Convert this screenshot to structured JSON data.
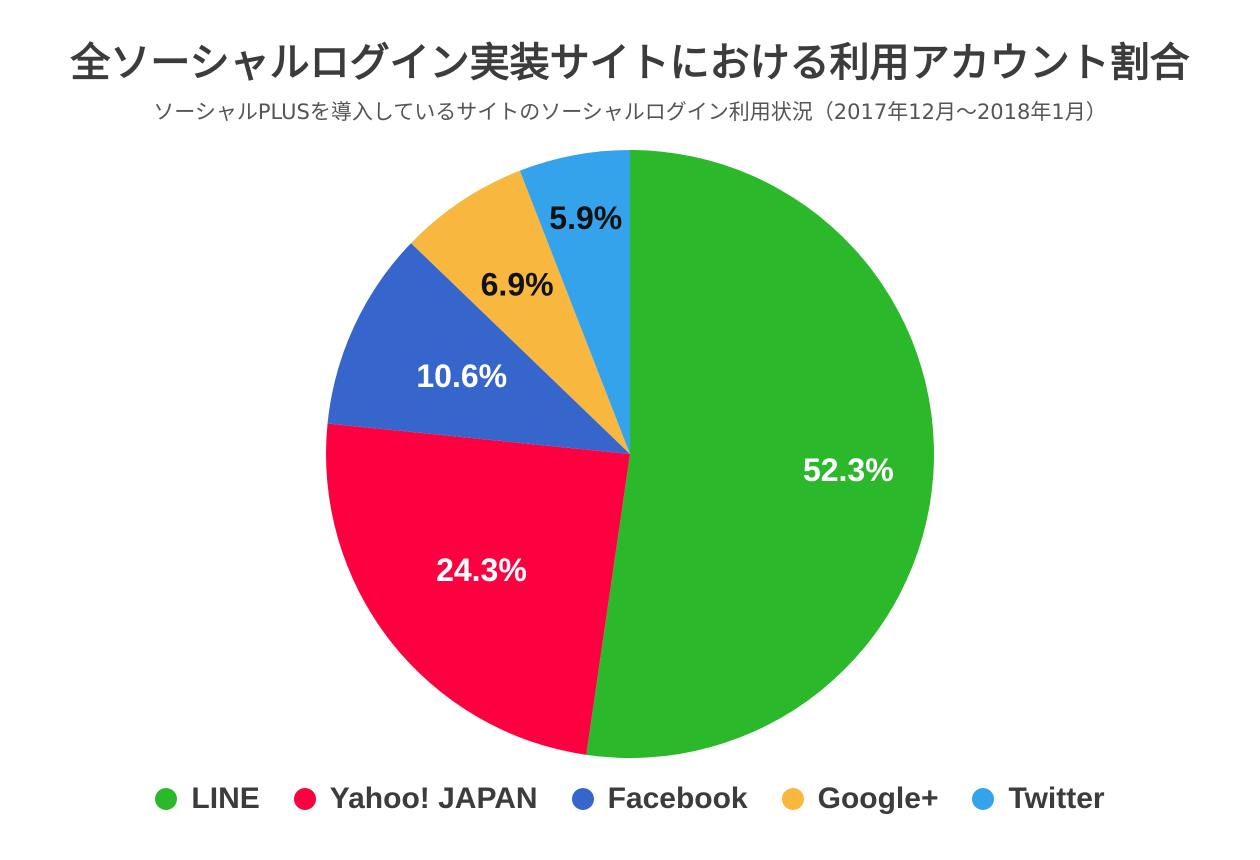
{
  "chart_data": {
    "type": "pie",
    "title": "全ソーシャルログイン実装サイトにおける利用アカウント割合",
    "subtitle": "ソーシャルPLUSを導入しているサイトのソーシャルログイン利用状況（2017年12月〜2018年1月）",
    "categories": [
      "LINE",
      "Yahoo! JAPAN",
      "Facebook",
      "Google+",
      "Twitter"
    ],
    "values": [
      52.3,
      24.3,
      10.6,
      6.9,
      5.9
    ],
    "labels": [
      "52.3%",
      "24.3%",
      "10.6%",
      "6.9%",
      "5.9%"
    ],
    "colors": [
      "#2bb82b",
      "#fc0040",
      "#3666cc",
      "#f8b73e",
      "#34a3eb"
    ],
    "label_colors": [
      "#ffffff",
      "#ffffff",
      "#ffffff",
      "#111111",
      "#111111"
    ],
    "legend_position": "bottom",
    "start_angle": "top, clockwise"
  }
}
